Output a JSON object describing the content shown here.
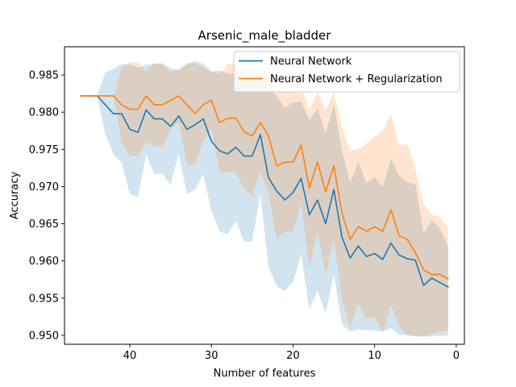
{
  "chart_data": {
    "type": "line",
    "title": "Arsenic_male_bladder",
    "xlabel": "Number of features",
    "ylabel": "Accuracy",
    "xlim": [
      48,
      -1
    ],
    "ylim": [
      0.9488,
      0.9888
    ],
    "x_inverted": true,
    "xticks": [
      40,
      30,
      20,
      10,
      0
    ],
    "yticks": [
      0.95,
      0.955,
      0.96,
      0.965,
      0.97,
      0.975,
      0.98,
      0.985
    ],
    "ytick_labels": [
      "0.950",
      "0.955",
      "0.960",
      "0.965",
      "0.970",
      "0.975",
      "0.980",
      "0.985"
    ],
    "grid": false,
    "legend_position": "top-right",
    "x": [
      46,
      45,
      44,
      43,
      42,
      41,
      40,
      39,
      38,
      37,
      36,
      35,
      34,
      33,
      32,
      31,
      30,
      29,
      28,
      27,
      26,
      25,
      24,
      23,
      22,
      21,
      20,
      19,
      18,
      17,
      16,
      15,
      14,
      13,
      12,
      11,
      10,
      9,
      8,
      7,
      6,
      5,
      4,
      3,
      2,
      1
    ],
    "series": [
      {
        "name": "Neural Network",
        "color": "#1f77b4",
        "band_color": "#1f77b4",
        "values": [
          0.9822,
          0.9822,
          0.9822,
          0.981,
          0.9798,
          0.9798,
          0.9777,
          0.9773,
          0.9803,
          0.9791,
          0.9791,
          0.9781,
          0.9795,
          0.9777,
          0.9783,
          0.9791,
          0.9761,
          0.9748,
          0.9744,
          0.9753,
          0.9741,
          0.9741,
          0.977,
          0.9712,
          0.9694,
          0.9682,
          0.9692,
          0.9711,
          0.9662,
          0.9682,
          0.965,
          0.9696,
          0.9632,
          0.9604,
          0.962,
          0.9606,
          0.961,
          0.9602,
          0.9624,
          0.9608,
          0.9603,
          0.9601,
          0.9567,
          0.9577,
          0.9571,
          0.9565
        ],
        "lower": [
          0.9822,
          0.9822,
          0.9822,
          0.977,
          0.9743,
          0.9732,
          0.969,
          0.9686,
          0.9743,
          0.9717,
          0.9717,
          0.9703,
          0.9744,
          0.969,
          0.9696,
          0.9717,
          0.9667,
          0.964,
          0.9636,
          0.9654,
          0.9626,
          0.9626,
          0.969,
          0.9592,
          0.9566,
          0.956,
          0.9571,
          0.9609,
          0.9535,
          0.956,
          0.9529,
          0.9582,
          0.9515,
          0.9505,
          0.9508,
          0.9507,
          0.9507,
          0.9505,
          0.951,
          0.9501,
          0.95,
          0.9499,
          0.9498,
          0.9499,
          0.9499,
          0.95
        ],
        "upper": [
          0.9822,
          0.9822,
          0.9822,
          0.9853,
          0.9858,
          0.9865,
          0.9864,
          0.986,
          0.9864,
          0.9865,
          0.9865,
          0.9859,
          0.9857,
          0.9864,
          0.9869,
          0.9865,
          0.9855,
          0.9856,
          0.9852,
          0.9852,
          0.9856,
          0.9857,
          0.985,
          0.9832,
          0.9822,
          0.9806,
          0.9813,
          0.9814,
          0.9789,
          0.9805,
          0.9772,
          0.981,
          0.9749,
          0.9705,
          0.9733,
          0.9705,
          0.9713,
          0.9699,
          0.9738,
          0.9715,
          0.9706,
          0.9703,
          0.9636,
          0.9655,
          0.9643,
          0.962
        ]
      },
      {
        "name": "Neural Network + Regularization",
        "color": "#ff7f0e",
        "band_color": "#ff7f0e",
        "values": [
          0.9822,
          0.9822,
          0.9822,
          0.9822,
          0.9822,
          0.981,
          0.9804,
          0.9804,
          0.9822,
          0.981,
          0.981,
          0.9816,
          0.9822,
          0.981,
          0.9798,
          0.981,
          0.9816,
          0.9786,
          0.9792,
          0.9792,
          0.9774,
          0.9768,
          0.9786,
          0.9768,
          0.9728,
          0.9733,
          0.9733,
          0.9756,
          0.9698,
          0.9733,
          0.9693,
          0.9728,
          0.9664,
          0.9629,
          0.9646,
          0.964,
          0.9646,
          0.964,
          0.9669,
          0.9634,
          0.9629,
          0.9611,
          0.9588,
          0.9582,
          0.9582,
          0.9576
        ],
        "lower": [
          0.9822,
          0.9822,
          0.9822,
          0.9822,
          0.9822,
          0.976,
          0.9741,
          0.9741,
          0.976,
          0.9754,
          0.9754,
          0.9778,
          0.9786,
          0.9729,
          0.973,
          0.976,
          0.9778,
          0.972,
          0.9719,
          0.9719,
          0.9698,
          0.9688,
          0.972,
          0.969,
          0.9629,
          0.9639,
          0.9639,
          0.9678,
          0.9592,
          0.9639,
          0.9582,
          0.9629,
          0.9548,
          0.951,
          0.9542,
          0.9522,
          0.9525,
          0.9505,
          0.9541,
          0.9513,
          0.95,
          0.9499,
          0.9499,
          0.9502,
          0.9505,
          0.9507
        ],
        "upper": [
          0.9822,
          0.9822,
          0.9822,
          0.9822,
          0.9822,
          0.986,
          0.9867,
          0.9867,
          0.9855,
          0.9866,
          0.9866,
          0.9854,
          0.9858,
          0.9866,
          0.9866,
          0.986,
          0.9854,
          0.9852,
          0.9865,
          0.9865,
          0.985,
          0.9848,
          0.9852,
          0.9846,
          0.9827,
          0.9827,
          0.9827,
          0.9834,
          0.9804,
          0.9827,
          0.9804,
          0.9827,
          0.978,
          0.9748,
          0.975,
          0.9758,
          0.9767,
          0.9775,
          0.9797,
          0.9755,
          0.9758,
          0.9723,
          0.9677,
          0.9662,
          0.9659,
          0.9645
        ]
      }
    ]
  }
}
